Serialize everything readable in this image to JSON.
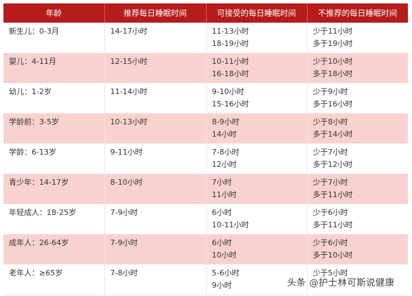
{
  "table": {
    "headers": [
      "年龄",
      "推荐每日睡眠时间",
      "可接受的每日睡眠时间",
      "不推荐的每日睡眠时间"
    ],
    "rows": [
      {
        "age": "新生儿：0-3月",
        "recommended": "14-17小时",
        "acceptable": [
          "11-13小时",
          "18-19小时"
        ],
        "not_recommended": [
          "少于11小时",
          "多于19小时"
        ]
      },
      {
        "age": "婴儿：4-11月",
        "recommended": "12-15小时",
        "acceptable": [
          "10-11小时",
          "16-18小时"
        ],
        "not_recommended": [
          "少于10小时",
          "多于18小时"
        ]
      },
      {
        "age": "幼儿：1-2岁",
        "recommended": "11-14小时",
        "acceptable": [
          "9-10小时",
          "15-16小时"
        ],
        "not_recommended": [
          "少于9小时",
          "多于16小时"
        ]
      },
      {
        "age": "学龄前：3-5岁",
        "recommended": "10-13小时",
        "acceptable": [
          "8-9小时",
          "14小时"
        ],
        "not_recommended": [
          "少于8小时",
          "多于14小时"
        ]
      },
      {
        "age": "学龄：6-13岁",
        "recommended": "9-11小时",
        "acceptable": [
          "7-8小时",
          "12小时"
        ],
        "not_recommended": [
          "少于7小时",
          "多于12小时"
        ]
      },
      {
        "age": "青少年：14-17岁",
        "recommended": "8-10小时",
        "acceptable": [
          "7小时",
          "11小时"
        ],
        "not_recommended": [
          "少于7小时",
          "多于11小时"
        ]
      },
      {
        "age": "年轻成人：18-25岁",
        "recommended": "7-9小时",
        "acceptable": [
          "6小时",
          "10-11小时"
        ],
        "not_recommended": [
          "少于6小时",
          "多于11小时"
        ]
      },
      {
        "age": "成年人：26-64岁",
        "recommended": "7-9小时",
        "acceptable": [
          "6小时",
          "10小时"
        ],
        "not_recommended": [
          "少于6小时",
          "多于10小时"
        ]
      },
      {
        "age": "老年人：≥65岁",
        "recommended": "7-8小时",
        "acceptable": [
          "5-6小时",
          "9小时"
        ],
        "not_recommended": [
          "少于5小时"
        ]
      }
    ]
  },
  "watermark": "头条 @护士林可斯说健康",
  "colors": {
    "header_bg": "#b71c1c",
    "row_alt_bg": "#f9d2d0"
  }
}
